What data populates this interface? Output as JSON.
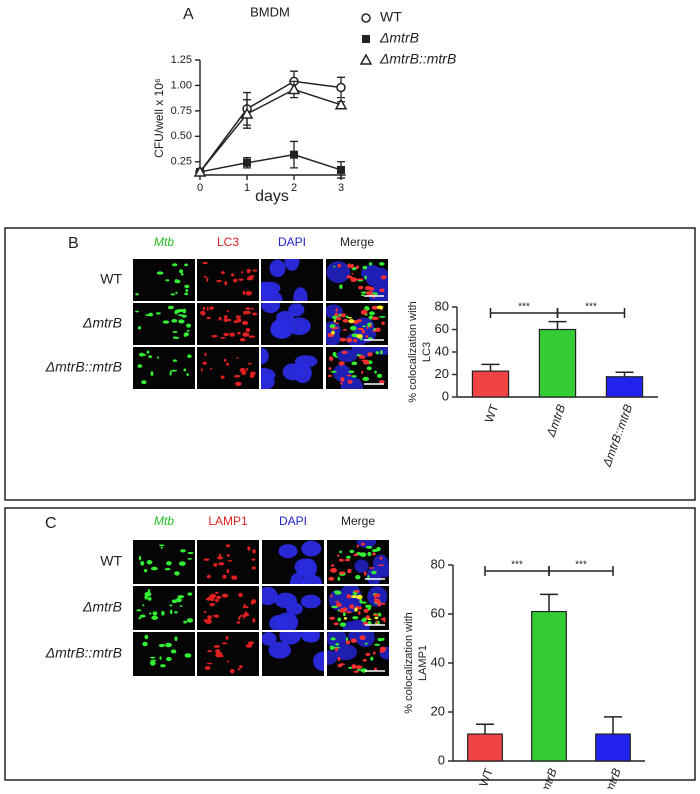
{
  "figure": {
    "panels": [
      {
        "label": "B",
        "columns": [
          "Mtb",
          "LC3",
          "DAPI",
          "Merge"
        ],
        "rows": [
          "WT",
          "ΔmtrB",
          "ΔmtrB::mtrB"
        ]
      },
      {
        "label": "C",
        "columns": [
          "Mtb",
          "LAMP1",
          "DAPI",
          "Merge"
        ],
        "rows": [
          "WT",
          "ΔmtrB",
          "ΔmtrB::mtrB"
        ]
      }
    ]
  },
  "chart_data": [
    {
      "type": "line",
      "panel_label": "A",
      "title": "BMDM",
      "xlabel": "days",
      "ylabel": "CFU/well x 10⁶",
      "x": [
        0,
        1,
        2,
        3
      ],
      "xlim": [
        0,
        3.1
      ],
      "xticks": [
        0,
        1,
        2,
        3
      ],
      "ylim": [
        0.12,
        1.25
      ],
      "yticks": [
        0.25,
        {
          "value": 0.5,
          "label": "0.50"
        },
        {
          "value": 0.75,
          "label": "0.75"
        },
        {
          "value": 1,
          "label": "1.00"
        },
        1.25
      ],
      "series": [
        {
          "name": "WT",
          "marker": "open-circle",
          "color": "#222222",
          "values": [
            0.15,
            0.77,
            1.04,
            0.98
          ],
          "errors": [
            0.02,
            0.16,
            0.1,
            0.1
          ]
        },
        {
          "name": "ΔmtrB",
          "marker": "filled-square",
          "color": "#222222",
          "values": [
            0.15,
            0.24,
            0.32,
            0.17
          ],
          "errors": [
            0.02,
            0.05,
            0.13,
            0.08
          ]
        },
        {
          "name": "ΔmtrB::mtrB",
          "marker": "open-triangle",
          "color": "#222222",
          "values": [
            0.15,
            0.72,
            0.96,
            0.81
          ],
          "errors": [
            0.02,
            0.14,
            0.08,
            0.03
          ]
        }
      ]
    },
    {
      "type": "bar",
      "ylabel": [
        "% colocalization with",
        "LC3"
      ],
      "categories": [
        "WT",
        "ΔmtrB",
        "ΔmtrB::mtrB"
      ],
      "values": [
        23,
        60,
        18
      ],
      "errors": [
        6,
        7,
        4
      ],
      "colors": [
        "#f04444",
        "#33cc33",
        "#2222ee"
      ],
      "ylim": [
        0,
        80
      ],
      "yticks": [
        0,
        20,
        40,
        60,
        80
      ],
      "annotations": [
        "***",
        "***"
      ]
    },
    {
      "type": "bar",
      "ylabel": [
        "% colocalization with",
        "LAMP1"
      ],
      "categories": [
        "WT",
        "ΔmtrB",
        "ΔmtrB::mtrB"
      ],
      "values": [
        11,
        61,
        11
      ],
      "errors": [
        4,
        7,
        7
      ],
      "colors": [
        "#f04444",
        "#33cc33",
        "#2222ee"
      ],
      "ylim": [
        0,
        80
      ],
      "yticks": [
        0,
        20,
        40,
        60,
        80
      ],
      "annotations": [
        "***",
        "***"
      ]
    }
  ]
}
